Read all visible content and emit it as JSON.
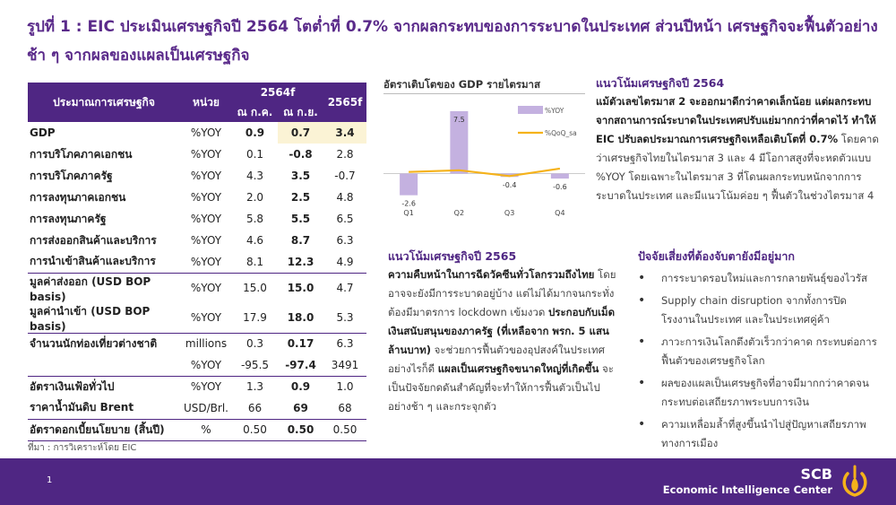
{
  "title": "รูปที่ 1 : EIC ประเมินเศรษฐกิจปี 2564 โตต่ำที่ 0.7% จากผลกระทบของการระบาดในประเทศ ส่วนปีหน้า เศรษฐกิจจะฟื้นตัวอย่างช้า ๆ จากผลของแผลเป็นเศรษฐกิจ",
  "table": {
    "header": {
      "col_name": "ประมาณการเศรษฐกิจ",
      "col_unit": "หน่วย",
      "col_2564f": "2564f",
      "col_jul": "ณ ก.ค.",
      "col_sep": "ณ ก.ย.",
      "col_2565f": "2565f"
    },
    "rows": [
      {
        "name": "GDP",
        "unit": "%YOY",
        "jul": "0.9",
        "sep": "0.7",
        "f2565": "3.4"
      },
      {
        "name": "การบริโภคภาคเอกชน",
        "unit": "%YOY",
        "jul": "0.1",
        "sep": "-0.8",
        "f2565": "2.8"
      },
      {
        "name": "การบริโภคภาครัฐ",
        "unit": "%YOY",
        "jul": "4.3",
        "sep": "3.5",
        "f2565": "-0.7"
      },
      {
        "name": "การลงทุนภาคเอกชน",
        "unit": "%YOY",
        "jul": "2.0",
        "sep": "2.5",
        "f2565": "4.8"
      },
      {
        "name": "การลงทุนภาครัฐ",
        "unit": "%YOY",
        "jul": "5.8",
        "sep": "5.5",
        "f2565": "6.5"
      },
      {
        "name": "การส่งออกสินค้าและบริการ",
        "unit": "%YOY",
        "jul": "4.6",
        "sep": "8.7",
        "f2565": "6.3"
      },
      {
        "name": "การนำเข้าสินค้าและบริการ",
        "unit": "%YOY",
        "jul": "8.1",
        "sep": "12.3",
        "f2565": "4.9"
      },
      {
        "name": "มูลค่าส่งออก (USD BOP basis)",
        "unit": "%YOY",
        "jul": "15.0",
        "sep": "15.0",
        "f2565": "4.7"
      },
      {
        "name": "มูลค่านำเข้า (USD BOP basis)",
        "unit": "%YOY",
        "jul": "17.9",
        "sep": "18.0",
        "f2565": "5.3"
      },
      {
        "name": "จำนวนนักท่องเที่ยวต่างชาติ",
        "unit": "millions",
        "jul": "0.3",
        "sep": "0.17",
        "f2565": "6.3"
      },
      {
        "name": "",
        "unit": "%YOY",
        "jul": "-95.5",
        "sep": "-97.4",
        "f2565": "3491"
      },
      {
        "name": "อัตราเงินเฟ้อทั่วไป",
        "unit": "%YOY",
        "jul": "1.3",
        "sep": "0.9",
        "f2565": "1.0"
      },
      {
        "name": "ราคาน้ำมันดิบ Brent",
        "unit": "USD/Brl.",
        "jul": "66",
        "sep": "69",
        "f2565": "68"
      },
      {
        "name": "อัตราดอกเบี้ยนโยบาย (สิ้นปี)",
        "unit": "%",
        "jul": "0.50",
        "sep": "0.50",
        "f2565": "0.50"
      }
    ],
    "source": "ที่มา : การวิเคราะห์โดย EIC"
  },
  "chart_data": {
    "type": "bar",
    "title": "อัตราเติบโตของ GDP รายไตรมาส",
    "categories": [
      "Q1",
      "Q2",
      "Q3",
      "Q4"
    ],
    "series": [
      {
        "name": "%YOY",
        "type": "bar",
        "values": [
          -2.6,
          7.5,
          -0.4,
          -0.6
        ],
        "color": "#c4b1e0"
      },
      {
        "name": "%QoQ_sa",
        "type": "line",
        "values": [
          0.2,
          0.4,
          -0.3,
          0.6
        ],
        "color": "#f5b21a"
      }
    ],
    "data_labels": [
      "-2.6",
      "7.5",
      "-0.4",
      "-0.6"
    ],
    "ylim": [
      -3.5,
      9
    ],
    "legend": "right"
  },
  "outlook_2564": {
    "heading": "แนวโน้มเศรษฐกิจปี 2564",
    "bold_text": "แม้ตัวเลขไตรมาส 2 จะออกมาดีกว่าคาดเล็กน้อย แต่ผลกระทบจากสถานการณ์ระบาดในประเทศปรับแย่มากกว่าที่คาดไว้ ทำให้ EIC ปรับลดประมาณการเศรษฐกิจเหลือเติบโตที่ 0.7%",
    "text": " โดยคาดว่าเศรษฐกิจไทยในไตรมาส 3 และ 4 มีโอกาสสูงที่จะหดตัวแบบ %YOY โดยเฉพาะในไตรมาส 3 ที่โดนผลกระทบหนักจากการระบาดในประเทศ และมีแนวโน้มค่อย ๆ ฟื้นตัวในช่วงไตรมาส 4"
  },
  "outlook_2565": {
    "heading": "แนวโน้มเศรษฐกิจปี 2565",
    "bold1": "ความคืบหน้าในการฉีดวัคซีนทั่วโลกรวมถึงไทย",
    "text1": " โดยอาจจะยังมีการระบาดอยู่บ้าง แต่ไม่ได้มากจนกระทั่งต้องมีมาตรการ lockdown เข้มงวด ",
    "bold2": "ประกอบกับเม็ดเงินสนับสนุนของภาครัฐ (ที่เหลือจาก พรก. 5 แสนล้านบาท)",
    "text2": " จะช่วยการฟื้นตัวของอุปสงค์ในประเทศ อย่างไรก็ดี ",
    "bold3": "แผลเป็นเศรษฐกิจขนาดใหญ่ที่เกิดขึ้น",
    "text3": " จะเป็นปัจจัยกดดันสำคัญที่จะทำให้การฟื้นตัวเป็นไปอย่างช้า ๆ และกระจุกตัว"
  },
  "risks": {
    "heading": "ปัจจัยเสี่ยงที่ต้องจับตายังมีอยู่มาก",
    "items": [
      "การระบาดรอบใหม่และการกลายพันธุ์ของไวรัส",
      "Supply chain disruption จากทั้งการปิดโรงงานในประเทศ และในประเทศคู่ค้า",
      "ภาวะการเงินโลกตึงตัวเร็วกว่าคาด กระทบต่อการฟื้นตัวของเศรษฐกิจโลก",
      "ผลของแผลเป็นเศรษฐกิจที่อาจมีมากกว่าคาดจนกระทบต่อเสถียรภาพระบบการเงิน",
      "ความเหลื่อมล้ำที่สูงขึ้นนำไปสู่ปัญหาเสถียรภาพทางการเมือง"
    ]
  },
  "footer": {
    "page": "1",
    "brand": "SCB",
    "subtitle": "Economic Intelligence Center",
    "accent": "#f5b21a",
    "background": "#4f2683"
  }
}
